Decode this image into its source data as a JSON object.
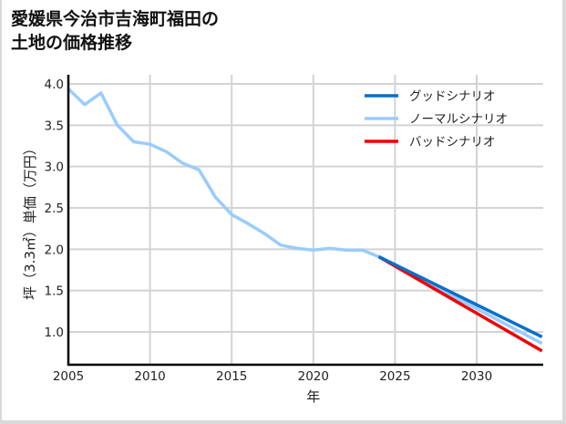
{
  "title_lines": [
    "愛媛県今治市吉海町福田の",
    "土地の価格推移"
  ],
  "chart_data": {
    "type": "line",
    "title": "愛媛県今治市吉海町福田の土地の価格推移",
    "xlabel": "年",
    "ylabel": "坪（3.3㎡）単価（万円）",
    "xlim": [
      2005,
      2034
    ],
    "ylim": [
      0.6,
      4.1
    ],
    "xticks": [
      2005,
      2010,
      2015,
      2020,
      2025,
      2030
    ],
    "yticks": [
      1.0,
      1.5,
      2.0,
      2.5,
      3.0,
      3.5,
      4.0
    ],
    "grid": true,
    "legend_position": "upper right",
    "series": [
      {
        "name": "グッドシナリオ",
        "color": "#0a6fc9",
        "x": [
          2024,
          2034
        ],
        "values": [
          1.91,
          0.94
        ]
      },
      {
        "name": "ノーマルシナリオ",
        "color": "#99ccff",
        "x": [
          2005,
          2006,
          2007,
          2008,
          2009,
          2010,
          2011,
          2012,
          2013,
          2014,
          2015,
          2016,
          2017,
          2018,
          2019,
          2020,
          2021,
          2022,
          2023,
          2024,
          2034
        ],
        "values": [
          3.94,
          3.75,
          3.89,
          3.5,
          3.3,
          3.27,
          3.18,
          3.04,
          2.96,
          2.63,
          2.42,
          2.31,
          2.19,
          2.05,
          2.01,
          1.99,
          2.01,
          1.99,
          1.99,
          1.91,
          0.86
        ]
      },
      {
        "name": "バッドシナリオ",
        "color": "#ee0000",
        "x": [
          2024,
          2034
        ],
        "values": [
          1.91,
          0.77
        ]
      }
    ]
  }
}
